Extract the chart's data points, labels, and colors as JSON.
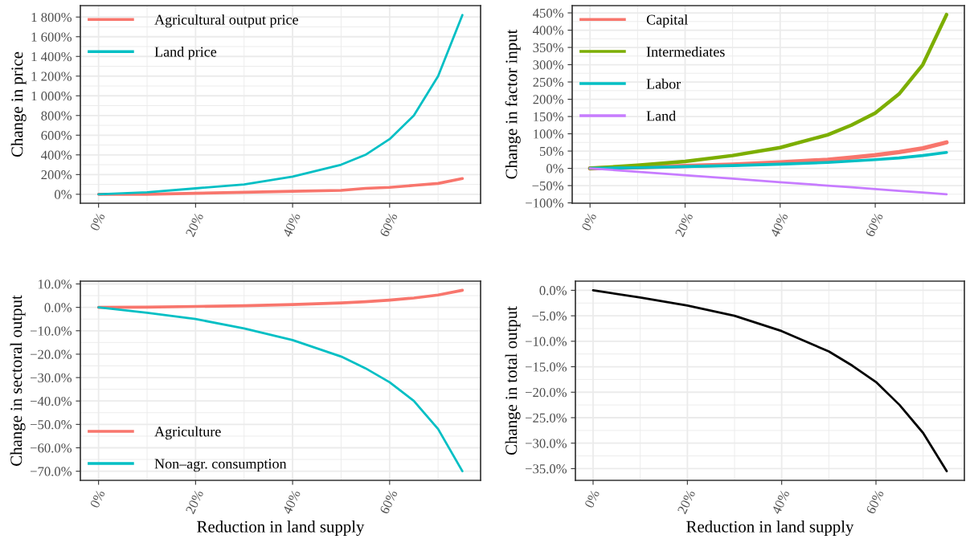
{
  "chart_data": [
    {
      "type": "line",
      "ylabel": "Change in price",
      "x": [
        0,
        10,
        20,
        30,
        40,
        50,
        55,
        60,
        65,
        70,
        75
      ],
      "xlim": [
        -3.75,
        78.75
      ],
      "xticks": [
        {
          "value": 0,
          "label": "0%"
        },
        {
          "value": 20,
          "label": "20%"
        },
        {
          "value": 40,
          "label": "40%"
        },
        {
          "value": 60,
          "label": "60%"
        }
      ],
      "ylim": [
        -91,
        1916
      ],
      "yticks": [
        {
          "value": 0,
          "label": "0%"
        },
        {
          "value": 200,
          "label": "200%"
        },
        {
          "value": 400,
          "label": "400%"
        },
        {
          "value": 600,
          "label": "600%"
        },
        {
          "value": 800,
          "label": "800%"
        },
        {
          "value": 1000,
          "label": "1 000%"
        },
        {
          "value": 1200,
          "label": "1 200%"
        },
        {
          "value": 1400,
          "label": "1 400%"
        },
        {
          "value": 1600,
          "label": "1 600%"
        },
        {
          "value": 1800,
          "label": "1 800%"
        }
      ],
      "grid": true,
      "legend": "top left",
      "series": [
        {
          "name": "Agricultural output price",
          "color": "#f8766d",
          "values": [
            0,
            0,
            10,
            20,
            30,
            40,
            60,
            70,
            90,
            110,
            160
          ]
        },
        {
          "name": "Land price",
          "color": "#00bfc4",
          "values": [
            0,
            20,
            60,
            100,
            180,
            300,
            400,
            560,
            800,
            1200,
            1820
          ]
        }
      ]
    },
    {
      "type": "line",
      "ylabel": "Change in factor input",
      "x": [
        0,
        10,
        20,
        30,
        40,
        50,
        55,
        60,
        65,
        70,
        75
      ],
      "xlim": [
        -3.75,
        78.75
      ],
      "xticks": [
        {
          "value": 0,
          "label": "0%"
        },
        {
          "value": 20,
          "label": "20%"
        },
        {
          "value": 40,
          "label": "40%"
        },
        {
          "value": 60,
          "label": "60%"
        }
      ],
      "ylim": [
        -101,
        471
      ],
      "yticks": [
        {
          "value": -100,
          "label": "−100%"
        },
        {
          "value": -50,
          "label": "−50%"
        },
        {
          "value": 0,
          "label": "0%"
        },
        {
          "value": 50,
          "label": "50%"
        },
        {
          "value": 100,
          "label": "100%"
        },
        {
          "value": 150,
          "label": "150%"
        },
        {
          "value": 200,
          "label": "200%"
        },
        {
          "value": 250,
          "label": "250%"
        },
        {
          "value": 300,
          "label": "300%"
        },
        {
          "value": 350,
          "label": "350%"
        },
        {
          "value": 400,
          "label": "400%"
        },
        {
          "value": 450,
          "label": "450%"
        }
      ],
      "grid": true,
      "legend": "top left",
      "series": [
        {
          "name": "Capital",
          "color": "#f8766d",
          "values": [
            0,
            3,
            7,
            11,
            17,
            25,
            31,
            38,
            47,
            58,
            75
          ]
        },
        {
          "name": "Intermediates",
          "color": "#7cae00",
          "values": [
            0,
            9,
            20,
            37,
            60,
            97,
            125,
            160,
            215,
            300,
            445
          ]
        },
        {
          "name": "Labor",
          "color": "#00bfc4",
          "values": [
            0,
            2,
            5,
            8,
            12,
            17,
            21,
            25,
            30,
            37,
            46
          ]
        },
        {
          "name": "Land",
          "color": "#c77cff",
          "values": [
            0,
            -10,
            -20,
            -30,
            -40,
            -50,
            -55,
            -60,
            -65,
            -70,
            -75
          ]
        }
      ]
    },
    {
      "type": "line",
      "ylabel": "Change in sectoral output",
      "xlabel": "Reduction in land supply",
      "x": [
        0,
        10,
        20,
        30,
        40,
        50,
        55,
        60,
        65,
        70,
        75
      ],
      "xlim": [
        -3.75,
        78.75
      ],
      "xticks": [
        {
          "value": 0,
          "label": "0%"
        },
        {
          "value": 20,
          "label": "20%"
        },
        {
          "value": 40,
          "label": "40%"
        },
        {
          "value": 60,
          "label": "60%"
        }
      ],
      "ylim": [
        -73.9,
        11.2
      ],
      "yticks": [
        {
          "value": -70,
          "label": "−70.0%"
        },
        {
          "value": -60,
          "label": "−60.0%"
        },
        {
          "value": -50,
          "label": "−50.0%"
        },
        {
          "value": -40,
          "label": "−40.0%"
        },
        {
          "value": -30,
          "label": "−30.0%"
        },
        {
          "value": -20,
          "label": "−20.0%"
        },
        {
          "value": -10,
          "label": "−10.0%"
        },
        {
          "value": 0,
          "label": "0.0%"
        },
        {
          "value": 10,
          "label": "10.0%"
        }
      ],
      "grid": true,
      "legend": "bottom left",
      "series": [
        {
          "name": "Agriculture",
          "color": "#f8766d",
          "values": [
            0,
            0.1,
            0.4,
            0.7,
            1.2,
            1.9,
            2.4,
            3.1,
            4.0,
            5.3,
            7.3
          ]
        },
        {
          "name": "Non–agr. consumption",
          "color": "#00bfc4",
          "values": [
            0,
            -2.3,
            -5,
            -9,
            -14,
            -21,
            -26,
            -32,
            -40,
            -52,
            -70
          ]
        }
      ]
    },
    {
      "type": "line",
      "ylabel": "Change in total output",
      "xlabel": "Reduction in land supply",
      "x": [
        0,
        10,
        20,
        30,
        40,
        50,
        55,
        60,
        65,
        70,
        75
      ],
      "xlim": [
        -3.75,
        78.75
      ],
      "xticks": [
        {
          "value": 0,
          "label": "0%"
        },
        {
          "value": 20,
          "label": "20%"
        },
        {
          "value": 40,
          "label": "40%"
        },
        {
          "value": 60,
          "label": "60%"
        }
      ],
      "ylim": [
        -37.3,
        1.8
      ],
      "yticks": [
        {
          "value": -35,
          "label": "−35.0%"
        },
        {
          "value": -30,
          "label": "−30.0%"
        },
        {
          "value": -25,
          "label": "−25.0%"
        },
        {
          "value": -20,
          "label": "−20.0%"
        },
        {
          "value": -15,
          "label": "−15.0%"
        },
        {
          "value": -10,
          "label": "−10.0%"
        },
        {
          "value": -5,
          "label": "−5.0%"
        },
        {
          "value": 0,
          "label": "0.0%"
        }
      ],
      "grid": true,
      "series": [
        {
          "color": "#000000",
          "values": [
            0,
            -1.4,
            -3,
            -5,
            -8,
            -12,
            -14.8,
            -18,
            -22.5,
            -28,
            -35.5
          ]
        }
      ]
    }
  ]
}
